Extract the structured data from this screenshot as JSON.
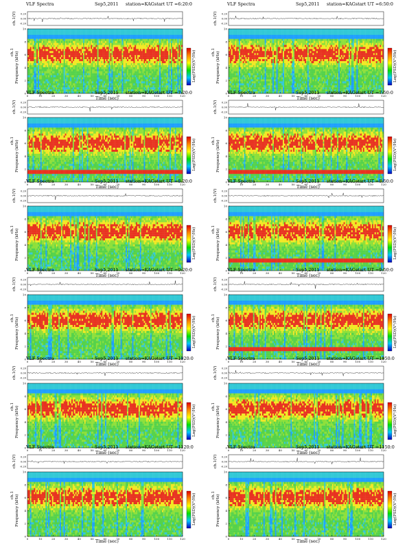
{
  "chart_data": [
    {
      "type": "heatmap",
      "title_left": "VLF Spectra",
      "date": "Sep5,2011",
      "station": "station=KAG",
      "start": "start  UT =6:20:0",
      "wave_ylabel": "ch.1(V)",
      "spec_ylabel": "ch.1",
      "freq_ylabel": "Frequency  (kHz)",
      "cbar_label": "Log(PSD)(V²/Hz)",
      "xlabel": "Time  (sec)",
      "wave_yticks": [
        "0.20",
        "0.00",
        "-0.20"
      ],
      "freq_yticks": [
        "0",
        "2",
        "4",
        "6",
        "8",
        "10"
      ],
      "xticks": [
        "0",
        "10",
        "20",
        "30",
        "40",
        "50",
        "60",
        "70",
        "80",
        "90",
        "100",
        "110",
        "120"
      ],
      "xlim": [
        0,
        120
      ],
      "freq_ylim_khz": [
        0,
        10
      ]
    },
    {
      "type": "heatmap",
      "title_left": "VLF Spectra",
      "date": "Sep5,2011",
      "station": "station=KAG",
      "start": "start  UT =6:50:0",
      "wave_ylabel": "ch.1(V)",
      "spec_ylabel": "ch.1",
      "freq_ylabel": "Frequency  (kHz)",
      "cbar_label": "Log(PSD)(V²/Hz)",
      "xlabel": "Time  (sec)",
      "wave_yticks": [
        "0.20",
        "0.00",
        "-0.20"
      ],
      "freq_yticks": [
        "0",
        "2",
        "4",
        "6",
        "8",
        "10"
      ],
      "xticks": [
        "0",
        "10",
        "20",
        "30",
        "40",
        "50",
        "60",
        "70",
        "80",
        "90",
        "100",
        "110",
        "120"
      ],
      "xlim": [
        0,
        120
      ],
      "freq_ylim_khz": [
        0,
        10
      ]
    },
    {
      "type": "heatmap",
      "title_left": "VLF Spectra",
      "date": "Sep5,2011",
      "station": "station=KAG",
      "start": "start  UT =7:20:0",
      "wave_ylabel": "ch.1(V)",
      "spec_ylabel": "ch.1",
      "freq_ylabel": "Frequency  (kHz)",
      "cbar_label": "Log(PSD)(V²/Hz)",
      "xlabel": "Time  (sec)",
      "wave_yticks": [
        "0.20",
        "0.00",
        "-0.20"
      ],
      "freq_yticks": [
        "0",
        "2",
        "4",
        "6",
        "8",
        "10"
      ],
      "xticks": [
        "0",
        "10",
        "20",
        "30",
        "40",
        "50",
        "60",
        "70",
        "80",
        "90",
        "100",
        "110",
        "120"
      ],
      "xlim": [
        0,
        120
      ],
      "freq_ylim_khz": [
        0,
        10
      ]
    },
    {
      "type": "heatmap",
      "title_left": "VLF Spectra",
      "date": "Sep5,2011",
      "station": "station=KAG",
      "start": "start  UT =7:50:0",
      "wave_ylabel": "ch.1(V)",
      "spec_ylabel": "ch.1",
      "freq_ylabel": "Frequency  (kHz)",
      "cbar_label": "Log(PSD)(V²/Hz)",
      "xlabel": "Time  (sec)",
      "wave_yticks": [
        "0.20",
        "0.00",
        "-0.20"
      ],
      "freq_yticks": [
        "0",
        "2",
        "4",
        "6",
        "8",
        "10"
      ],
      "xticks": [
        "0",
        "10",
        "20",
        "30",
        "40",
        "50",
        "60",
        "70",
        "80",
        "90",
        "100",
        "110",
        "120"
      ],
      "xlim": [
        0,
        120
      ],
      "freq_ylim_khz": [
        0,
        10
      ]
    },
    {
      "type": "heatmap",
      "title_left": "VLF Spectra",
      "date": "Sep5,2011",
      "station": "station=KAG",
      "start": "start  UT =8:20:0",
      "wave_ylabel": "ch.1(V)",
      "spec_ylabel": "ch.1",
      "freq_ylabel": "Frequency  (kHz)",
      "cbar_label": "Log(PSD)(V²/Hz)",
      "xlabel": "Time  (sec)",
      "wave_yticks": [
        "0.20",
        "0.00",
        "-0.20"
      ],
      "freq_yticks": [
        "0",
        "2",
        "4",
        "6",
        "8",
        "10"
      ],
      "xticks": [
        "0",
        "10",
        "20",
        "30",
        "40",
        "50",
        "60",
        "70",
        "80",
        "90",
        "100",
        "110",
        "120"
      ],
      "xlim": [
        0,
        120
      ],
      "freq_ylim_khz": [
        0,
        10
      ]
    },
    {
      "type": "heatmap",
      "title_left": "VLF Spectra",
      "date": "Sep5,2011",
      "station": "station=KAG",
      "start": "start  UT =8:50:0",
      "wave_ylabel": "ch.1(V)",
      "spec_ylabel": "ch.1",
      "freq_ylabel": "Frequency  (kHz)",
      "cbar_label": "Log(PSD)(V²/Hz)",
      "xlabel": "Time  (sec)",
      "wave_yticks": [
        "0.20",
        "0.00",
        "-0.20"
      ],
      "freq_yticks": [
        "0",
        "2",
        "4",
        "6",
        "8",
        "10"
      ],
      "xticks": [
        "0",
        "10",
        "20",
        "30",
        "40",
        "50",
        "60",
        "70",
        "80",
        "90",
        "100",
        "110",
        "120"
      ],
      "xlim": [
        0,
        120
      ],
      "freq_ylim_khz": [
        0,
        10
      ]
    },
    {
      "type": "heatmap",
      "title_left": "VLF Spectra",
      "date": "Sep5,2011",
      "station": "station=KAG",
      "start": "start  UT =9:20:0",
      "wave_ylabel": "ch.1(V)",
      "spec_ylabel": "ch.1",
      "freq_ylabel": "Frequency  (kHz)",
      "cbar_label": "Log(PSD)(V²/Hz)",
      "xlabel": "Time  (sec)",
      "wave_yticks": [
        "0.20",
        "0.00",
        "-0.20"
      ],
      "freq_yticks": [
        "0",
        "2",
        "4",
        "6",
        "8",
        "10"
      ],
      "xticks": [
        "0",
        "10",
        "20",
        "30",
        "40",
        "50",
        "60",
        "70",
        "80",
        "90",
        "100",
        "110",
        "120"
      ],
      "xlim": [
        0,
        120
      ],
      "freq_ylim_khz": [
        0,
        10
      ]
    },
    {
      "type": "heatmap",
      "title_left": "VLF Spectra",
      "date": "Sep5,2011",
      "station": "station=KAG",
      "start": "start  UT =9:50:0",
      "wave_ylabel": "ch.1(V)",
      "spec_ylabel": "ch.1",
      "freq_ylabel": "Frequency  (kHz)",
      "cbar_label": "Log(PSD)(V²/Hz)",
      "xlabel": "Time  (sec)",
      "wave_yticks": [
        "0.20",
        "0.00",
        "-0.20"
      ],
      "freq_yticks": [
        "0",
        "2",
        "4",
        "6",
        "8",
        "10"
      ],
      "xticks": [
        "0",
        "10",
        "20",
        "30",
        "40",
        "50",
        "60",
        "70",
        "80",
        "90",
        "100",
        "110",
        "120"
      ],
      "xlim": [
        0,
        120
      ],
      "freq_ylim_khz": [
        0,
        10
      ]
    },
    {
      "type": "heatmap",
      "title_left": "VLF Spectra",
      "date": "Sep5,2011",
      "station": "station=KAG",
      "start": "start  UT =1020:0",
      "wave_ylabel": "ch.1(V)",
      "spec_ylabel": "ch.1",
      "freq_ylabel": "Frequency  (kHz)",
      "cbar_label": "Log(PSD)(V²/Hz)",
      "xlabel": "Time  (sec)",
      "wave_yticks": [
        "0.20",
        "0.00",
        "-0.20"
      ],
      "freq_yticks": [
        "0",
        "2",
        "4",
        "6",
        "8",
        "10"
      ],
      "xticks": [
        "0",
        "10",
        "20",
        "30",
        "40",
        "50",
        "60",
        "70",
        "80",
        "90",
        "100",
        "110",
        "120"
      ],
      "xlim": [
        0,
        120
      ],
      "freq_ylim_khz": [
        0,
        10
      ]
    },
    {
      "type": "heatmap",
      "title_left": "VLF Spectra",
      "date": "Sep5,2011",
      "station": "station=KAG",
      "start": "start  UT =1050:0",
      "wave_ylabel": "ch.1(V)",
      "spec_ylabel": "ch.1",
      "freq_ylabel": "Frequency  (kHz)",
      "cbar_label": "Log(PSD)(V²/Hz)",
      "xlabel": "Time  (sec)",
      "wave_yticks": [
        "0.20",
        "0.00",
        "-0.20"
      ],
      "freq_yticks": [
        "0",
        "2",
        "4",
        "6",
        "8",
        "10"
      ],
      "xticks": [
        "0",
        "10",
        "20",
        "30",
        "40",
        "50",
        "60",
        "70",
        "80",
        "90",
        "100",
        "110",
        "120"
      ],
      "xlim": [
        0,
        120
      ],
      "freq_ylim_khz": [
        0,
        10
      ]
    },
    {
      "type": "heatmap",
      "title_left": "VLF Spectra",
      "date": "Sep5,2011",
      "station": "station=KAG",
      "start": "start  UT =1120:0",
      "wave_ylabel": "ch.1(V)",
      "spec_ylabel": "ch.1",
      "freq_ylabel": "Frequency  (kHz)",
      "cbar_label": "Log(PSD)(V²/Hz)",
      "xlabel": "Time  (sec)",
      "wave_yticks": [
        "0.20",
        "0.00",
        "-0.20"
      ],
      "freq_yticks": [
        "0",
        "2",
        "4",
        "6",
        "8",
        "10"
      ],
      "xticks": [
        "0",
        "10",
        "20",
        "30",
        "40",
        "50",
        "60",
        "70",
        "80",
        "90",
        "100",
        "110",
        "120"
      ],
      "xlim": [
        0,
        120
      ],
      "freq_ylim_khz": [
        0,
        10
      ]
    },
    {
      "type": "heatmap",
      "title_left": "VLF Spectra",
      "date": "Sep5,2011",
      "station": "station=KAG",
      "start": "start  UT =1150:0",
      "wave_ylabel": "ch.1(V)",
      "spec_ylabel": "ch.1",
      "freq_ylabel": "Frequency  (kHz)",
      "cbar_label": "Log(PSD)(V²/Hz)",
      "xlabel": "Time  (sec)",
      "wave_yticks": [
        "0.20",
        "0.00",
        "-0.20"
      ],
      "freq_yticks": [
        "0",
        "2",
        "4",
        "6",
        "8",
        "10"
      ],
      "xticks": [
        "0",
        "10",
        "20",
        "30",
        "40",
        "50",
        "60",
        "70",
        "80",
        "90",
        "100",
        "110",
        "120"
      ],
      "xlim": [
        0,
        120
      ],
      "freq_ylim_khz": [
        0,
        10
      ]
    }
  ],
  "colors": {
    "spectrogram_palette": [
      "#1e9fff",
      "#33c9d6",
      "#55d24a",
      "#8ee03a",
      "#f2e825",
      "#e83320"
    ],
    "colorbar_gradient": [
      "#e00000",
      "#ff8800",
      "#ffff00",
      "#00e000",
      "#00c8ff",
      "#0000c0"
    ],
    "waveform": "#000000"
  }
}
